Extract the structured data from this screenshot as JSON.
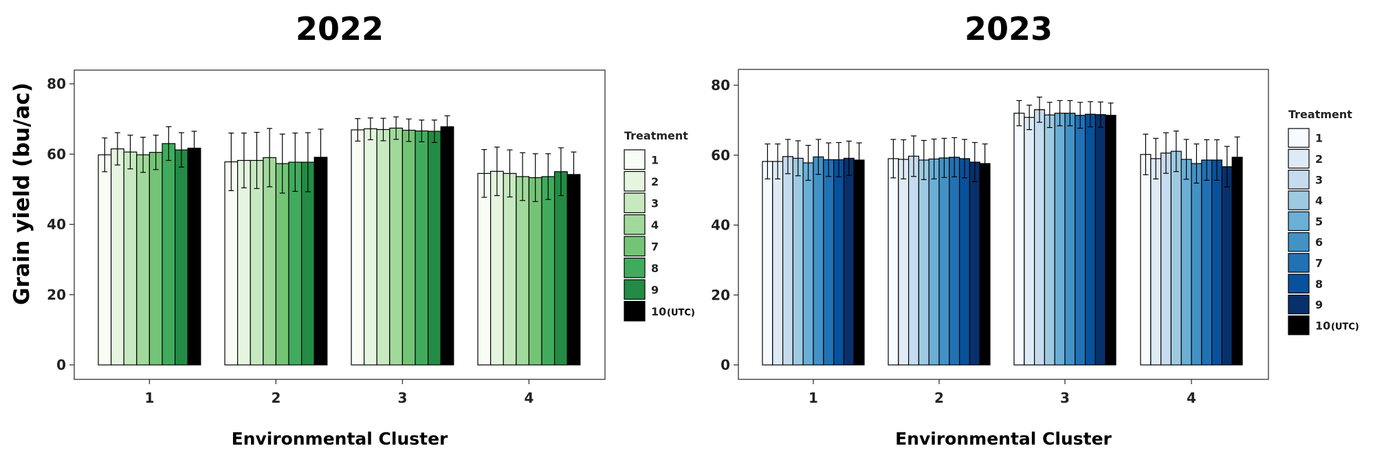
{
  "figure": {
    "ylabel": "Grain yield (bu/ac)",
    "xlabel": "Environmental Cluster",
    "legend_title": "Treatment"
  },
  "chart_data": [
    {
      "type": "bar",
      "title": "2022",
      "xlabel": "Environmental Cluster",
      "ylabel": "Grain yield (bu/ac)",
      "ylim": [
        0,
        80
      ],
      "yticks": [
        0,
        20,
        40,
        60,
        80
      ],
      "categories": [
        "1",
        "2",
        "3",
        "4"
      ],
      "grid": false,
      "legend": {
        "title": "Treatment",
        "position": "right"
      },
      "series": [
        {
          "name": "1",
          "color": "#f7fcf5",
          "values": [
            59.8,
            57.8,
            66.9,
            54.5
          ],
          "err": [
            4.8,
            8.2,
            3.2,
            6.8
          ]
        },
        {
          "name": "2",
          "color": "#e5f5e0",
          "values": [
            61.5,
            58.2,
            67.2,
            55.1
          ],
          "err": [
            4.6,
            7.8,
            3.1,
            6.9
          ]
        },
        {
          "name": "3",
          "color": "#c7e9c0",
          "values": [
            60.6,
            58.2,
            67.0,
            54.5
          ],
          "err": [
            4.8,
            8.0,
            3.2,
            6.7
          ]
        },
        {
          "name": "4",
          "color": "#a1d99b",
          "values": [
            59.8,
            59.0,
            67.4,
            53.6
          ],
          "err": [
            5.0,
            8.3,
            3.2,
            6.8
          ]
        },
        {
          "name": "7",
          "color": "#74c476",
          "values": [
            60.5,
            57.3,
            66.8,
            53.3
          ],
          "err": [
            4.9,
            8.4,
            3.2,
            6.8
          ]
        },
        {
          "name": "8",
          "color": "#41ab5d",
          "values": [
            63.0,
            57.7,
            66.6,
            53.6
          ],
          "err": [
            4.8,
            8.3,
            3.1,
            6.5
          ]
        },
        {
          "name": "9",
          "color": "#238b45",
          "values": [
            61.2,
            57.7,
            66.5,
            55.0
          ],
          "err": [
            4.9,
            8.4,
            3.2,
            6.8
          ]
        },
        {
          "name": "10",
          "color": "#000000",
          "values": [
            61.7,
            59.1,
            67.8,
            54.2
          ],
          "err": [
            4.8,
            8.0,
            3.1,
            6.4
          ]
        }
      ]
    },
    {
      "type": "bar",
      "title": "2023",
      "xlabel": "Environmental Cluster",
      "ylabel": "",
      "ylim": [
        0,
        80
      ],
      "yticks": [
        0,
        20,
        40,
        60,
        80
      ],
      "categories": [
        "1",
        "2",
        "3",
        "4"
      ],
      "grid": false,
      "legend": {
        "title": "Treatment",
        "position": "right"
      },
      "series": [
        {
          "name": "1",
          "color": "#f7fbff",
          "values": [
            58.2,
            59.0,
            72.0,
            60.2
          ],
          "err": [
            5.0,
            5.5,
            3.6,
            5.8
          ]
        },
        {
          "name": "2",
          "color": "#deebf7",
          "values": [
            58.2,
            58.8,
            70.8,
            59.0
          ],
          "err": [
            5.0,
            5.6,
            3.5,
            5.8
          ]
        },
        {
          "name": "3",
          "color": "#c6dbef",
          "values": [
            59.6,
            59.7,
            73.0,
            60.6
          ],
          "err": [
            4.9,
            5.8,
            3.6,
            5.8
          ]
        },
        {
          "name": "4",
          "color": "#9ecae1",
          "values": [
            59.1,
            58.6,
            71.5,
            61.1
          ],
          "err": [
            5.0,
            5.6,
            3.6,
            5.8
          ]
        },
        {
          "name": "5",
          "color": "#6baed6",
          "values": [
            57.8,
            58.9,
            72.0,
            58.8
          ],
          "err": [
            5.0,
            5.7,
            3.6,
            5.7
          ]
        },
        {
          "name": "6",
          "color": "#4292c6",
          "values": [
            59.5,
            59.2,
            72.0,
            57.6
          ],
          "err": [
            5.0,
            5.6,
            3.6,
            5.6
          ]
        },
        {
          "name": "7",
          "color": "#2171b5",
          "values": [
            58.7,
            59.4,
            71.4,
            58.6
          ],
          "err": [
            4.8,
            5.6,
            3.7,
            5.8
          ]
        },
        {
          "name": "8",
          "color": "#08519c",
          "values": [
            58.7,
            59.0,
            71.7,
            58.6
          ],
          "err": [
            4.9,
            5.5,
            3.6,
            5.8
          ]
        },
        {
          "name": "9",
          "color": "#08306b",
          "values": [
            59.1,
            58.0,
            71.6,
            56.7
          ],
          "err": [
            4.9,
            5.6,
            3.6,
            5.8
          ]
        },
        {
          "name": "10",
          "color": "#000000",
          "values": [
            58.6,
            57.6,
            71.4,
            59.4
          ],
          "err": [
            4.9,
            5.6,
            3.5,
            5.8
          ]
        }
      ]
    }
  ],
  "legend_suffix": "(UTC)"
}
